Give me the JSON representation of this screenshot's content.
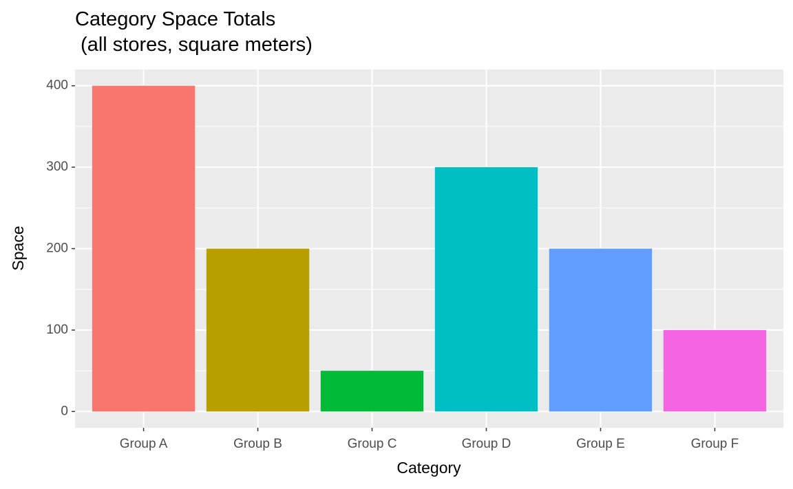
{
  "chart_data": {
    "type": "bar",
    "title": "Category Space Totals\n (all stores, square meters)",
    "x_label": "Category",
    "y_label": "Space",
    "categories": [
      "Group A",
      "Group B",
      "Group C",
      "Group D",
      "Group E",
      "Group F"
    ],
    "values": [
      400,
      200,
      50,
      300,
      200,
      100
    ],
    "colors": [
      "#F8766D",
      "#B79F00",
      "#00BA38",
      "#00BFC4",
      "#619CFF",
      "#F564E3"
    ],
    "ylim": [
      -20,
      420
    ],
    "yticks": [
      0,
      100,
      200,
      300,
      400
    ],
    "y_minor_ticks": [
      50,
      150,
      250,
      350
    ],
    "grid": true
  }
}
